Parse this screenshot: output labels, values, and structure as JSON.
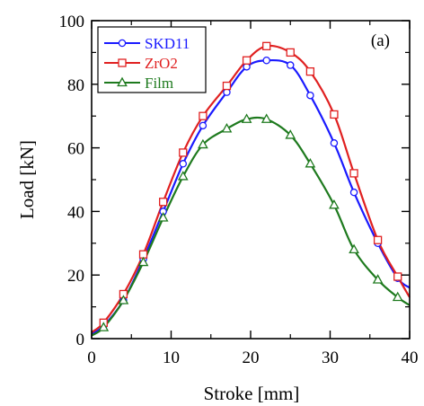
{
  "chart_data": {
    "type": "line",
    "title": "",
    "panel_label": "(a)",
    "xlabel": "Stroke [mm]",
    "ylabel": "Load [kN]",
    "xlim": [
      0,
      40
    ],
    "ylim": [
      0,
      100
    ],
    "xticks": [
      0,
      10,
      20,
      30,
      40
    ],
    "yticks": [
      0,
      20,
      40,
      60,
      80,
      100
    ],
    "grid": false,
    "legend_position": "top-left",
    "series": [
      {
        "name": "SKD11",
        "color": "#1a1aff",
        "marker": "circle",
        "x": [
          0,
          1.5,
          4,
          6.5,
          9,
          11.5,
          14,
          17,
          19.5,
          22,
          25,
          27.5,
          30.5,
          33,
          36,
          38.5,
          40
        ],
        "y": [
          1.5,
          4,
          12,
          25,
          40,
          55,
          67,
          77.5,
          85.5,
          87.5,
          86,
          76.5,
          61.5,
          46,
          30,
          19,
          16
        ]
      },
      {
        "name": "ZrO2",
        "color": "#e02020",
        "marker": "square",
        "x": [
          0,
          1.5,
          4,
          6.5,
          9,
          11.5,
          14,
          17,
          19.5,
          22,
          25,
          27.5,
          30.5,
          33,
          36,
          38.5,
          40
        ],
        "y": [
          2,
          5,
          14,
          26.5,
          43,
          58.5,
          70,
          79.5,
          87.5,
          92,
          90,
          84,
          70.5,
          52,
          31,
          19.5,
          13
        ]
      },
      {
        "name": "Film",
        "color": "#1e7a1e",
        "marker": "triangle",
        "x": [
          0,
          1.5,
          4,
          6.5,
          9,
          11.5,
          14,
          17,
          19.5,
          22,
          25,
          27.5,
          30.5,
          33,
          36,
          38.5,
          40
        ],
        "y": [
          1,
          3.5,
          12,
          24,
          38,
          51,
          61,
          66,
          69,
          69,
          64,
          55,
          42,
          28,
          18.5,
          13,
          10.5
        ]
      }
    ]
  }
}
